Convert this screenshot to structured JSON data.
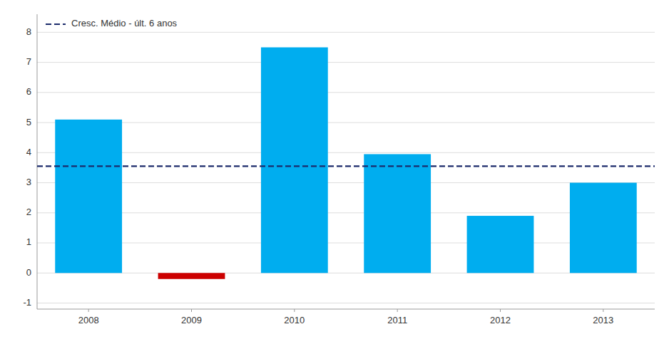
{
  "chart_data": {
    "type": "bar",
    "categories": [
      "2008",
      "2009",
      "2010",
      "2011",
      "2012",
      "2013"
    ],
    "values": [
      5.1,
      -0.2,
      7.5,
      3.95,
      1.9,
      3.0
    ],
    "colors": [
      "#00ADEF",
      "#CC0000",
      "#00ADEF",
      "#00ADEF",
      "#00ADEF",
      "#00ADEF"
    ],
    "average_line": {
      "value": 3.55,
      "name": "Cresc. Médio - últ. 6 anos",
      "color": "#1B2A6B"
    },
    "ylim": [
      -1.2,
      8.6
    ],
    "yticks": [
      -1,
      0,
      1,
      2,
      3,
      4,
      5,
      6,
      7,
      8
    ],
    "grid": true,
    "legend": "upper left"
  }
}
